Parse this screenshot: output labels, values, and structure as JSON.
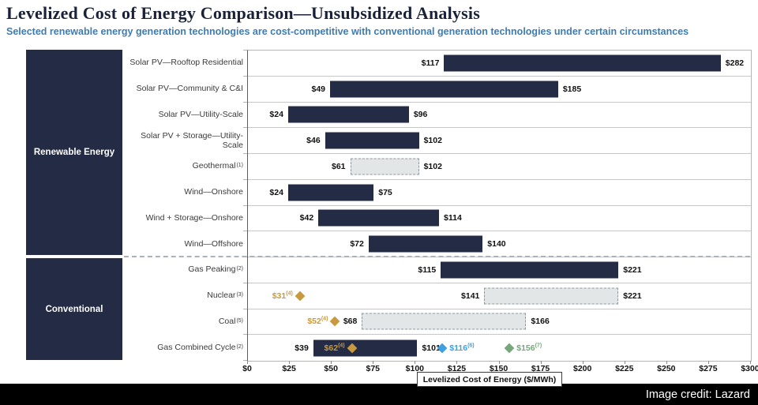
{
  "title": "Levelized Cost of Energy Comparison—Unsubsidized Analysis",
  "subtitle": "Selected renewable energy generation technologies are cost-competitive with conventional generation technologies under certain circumstances",
  "footer": {
    "credit": "Image credit: Lazard"
  },
  "colors": {
    "navy": "#232b45",
    "gray_bar": "#e2e6e6",
    "gold": "#c9993f",
    "blue": "#3fa0df",
    "green": "#77a67b",
    "subtitle_blue": "#3e7cb1"
  },
  "chart_data": {
    "type": "bar",
    "subtype": "horizontal-range",
    "title": "Levelized Cost of Energy Comparison—Unsubsidized Analysis",
    "xlabel": "Levelized Cost of Energy ($/MWh)",
    "xlim": [
      0,
      300
    ],
    "tick_step": 25,
    "tick_labels": [
      "$0",
      "$25",
      "$50",
      "$75",
      "$100",
      "$125",
      "$150",
      "$175",
      "$200",
      "$225",
      "$250",
      "$275",
      "$300"
    ],
    "grid": false,
    "groups": [
      {
        "name": "Renewable Energy",
        "rows": [
          {
            "label": "Solar PV—Rooftop Residential",
            "sup": "",
            "low": 117,
            "high": 282,
            "low_label": "$117",
            "high_label": "$282",
            "style": "solid",
            "markers": []
          },
          {
            "label": "Solar PV—Community & C&I",
            "sup": "",
            "low": 49,
            "high": 185,
            "low_label": "$49",
            "high_label": "$185",
            "style": "solid",
            "markers": []
          },
          {
            "label": "Solar PV—Utility-Scale",
            "sup": "",
            "low": 24,
            "high": 96,
            "low_label": "$24",
            "high_label": "$96",
            "style": "solid",
            "markers": []
          },
          {
            "label": "Solar PV + Storage—Utility-Scale",
            "sup": "",
            "low": 46,
            "high": 102,
            "low_label": "$46",
            "high_label": "$102",
            "style": "solid",
            "markers": []
          },
          {
            "label": "Geothermal",
            "sup": "(1)",
            "low": 61,
            "high": 102,
            "low_label": "$61",
            "high_label": "$102",
            "style": "dashed",
            "markers": []
          },
          {
            "label": "Wind—Onshore",
            "sup": "",
            "low": 24,
            "high": 75,
            "low_label": "$24",
            "high_label": "$75",
            "style": "solid",
            "markers": []
          },
          {
            "label": "Wind + Storage—Onshore",
            "sup": "",
            "low": 42,
            "high": 114,
            "low_label": "$42",
            "high_label": "$114",
            "style": "solid",
            "markers": []
          },
          {
            "label": "Wind—Offshore",
            "sup": "",
            "low": 72,
            "high": 140,
            "low_label": "$72",
            "high_label": "$140",
            "style": "solid",
            "markers": []
          }
        ]
      },
      {
        "name": "Conventional",
        "rows": [
          {
            "label": "Gas Peaking",
            "sup": "(2)",
            "low": 115,
            "high": 221,
            "low_label": "$115",
            "high_label": "$221",
            "style": "solid",
            "markers": []
          },
          {
            "label": "Nuclear",
            "sup": "(3)",
            "low": 141,
            "high": 221,
            "low_label": "$141",
            "high_label": "$221",
            "style": "dashed",
            "markers": [
              {
                "value": 31,
                "label": "$31",
                "sup": "(4)",
                "color": "gold",
                "label_side": "left"
              }
            ]
          },
          {
            "label": "Coal",
            "sup": "(5)",
            "low": 68,
            "high": 166,
            "low_label": "$68",
            "high_label": "$166",
            "style": "dashed",
            "markers": [
              {
                "value": 52,
                "label": "$52",
                "sup": "(4)",
                "color": "gold",
                "label_side": "left"
              }
            ]
          },
          {
            "label": "Gas Combined Cycle",
            "sup": "(2)",
            "low": 39,
            "high": 101,
            "low_label": "$39",
            "high_label": "$101",
            "style": "solid",
            "markers": [
              {
                "value": 62,
                "label": "$62",
                "sup": "(4)",
                "color": "gold",
                "label_side": "left",
                "inside_bar": true
              },
              {
                "value": 116,
                "label": "$116",
                "sup": "(6)",
                "color": "blue",
                "label_side": "right"
              },
              {
                "value": 156,
                "label": "$156",
                "sup": "(7)",
                "color": "green",
                "label_side": "right"
              }
            ]
          }
        ]
      }
    ]
  }
}
